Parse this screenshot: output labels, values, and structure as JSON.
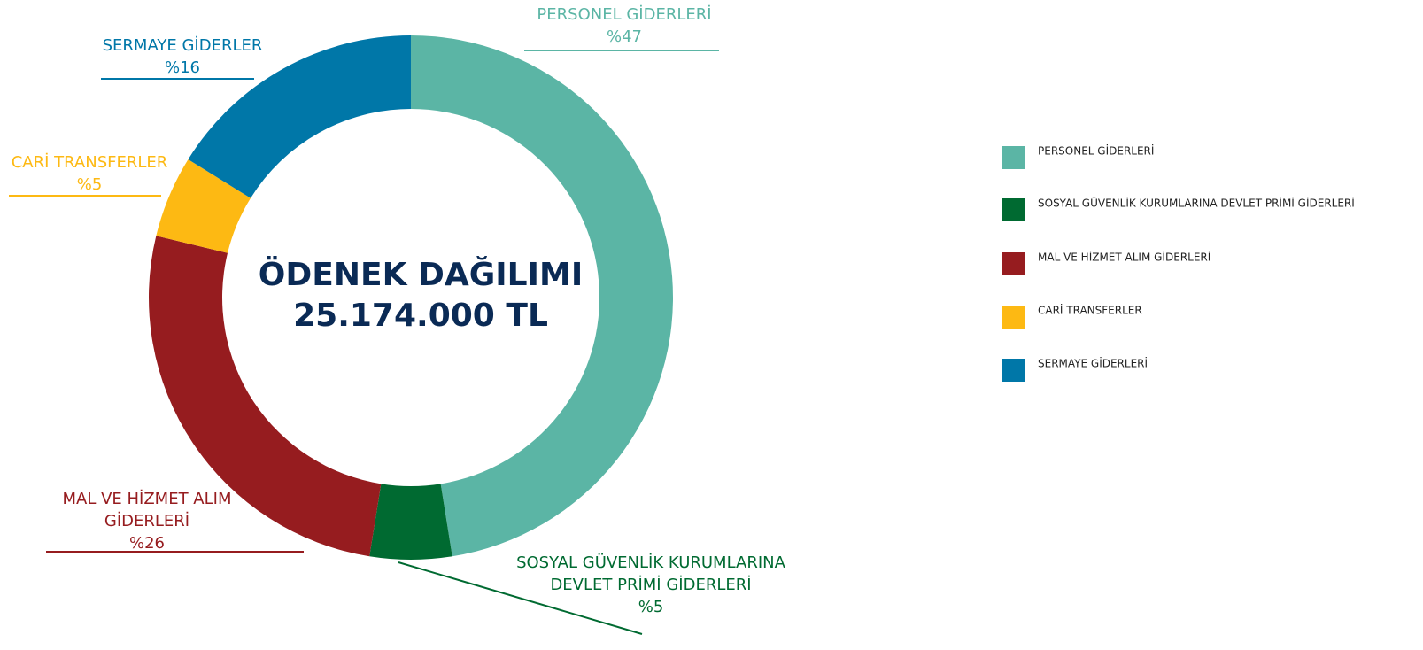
{
  "chart_data": {
    "type": "pie",
    "donut": true,
    "title": "ÖDENEK DAĞILIMI",
    "subtitle": "25.174.000 TL",
    "categories": [
      "PERSONEL GİDERLERİ",
      "SOSYAL GÜVENLİK KURUMLARINA DEVLET PRİMİ GİDERLERİ",
      "MAL VE HİZMET ALIM GİDERLERİ",
      "CARİ TRANSFERLER",
      "SERMAYE GİDERLERİ"
    ],
    "labels": [
      [
        "PERSONEL GİDERLERİ"
      ],
      [
        "SOSYAL GÜVENLİK KURUMLARINA",
        "DEVLET PRİMİ GİDERLERİ"
      ],
      [
        "MAL VE HİZMET ALIM",
        "GİDERLERİ"
      ],
      [
        "CARİ TRANSFERLER"
      ],
      [
        "SERMAYE GİDERLER"
      ]
    ],
    "values": [
      47,
      5,
      26,
      5,
      16
    ],
    "value_labels": [
      "%47",
      "%5",
      "%26",
      "%5",
      "%16"
    ],
    "colors": [
      "#5bb5a5",
      "#006a31",
      "#961c1f",
      "#fdb913",
      "#0077a8"
    ],
    "legend": "right"
  }
}
